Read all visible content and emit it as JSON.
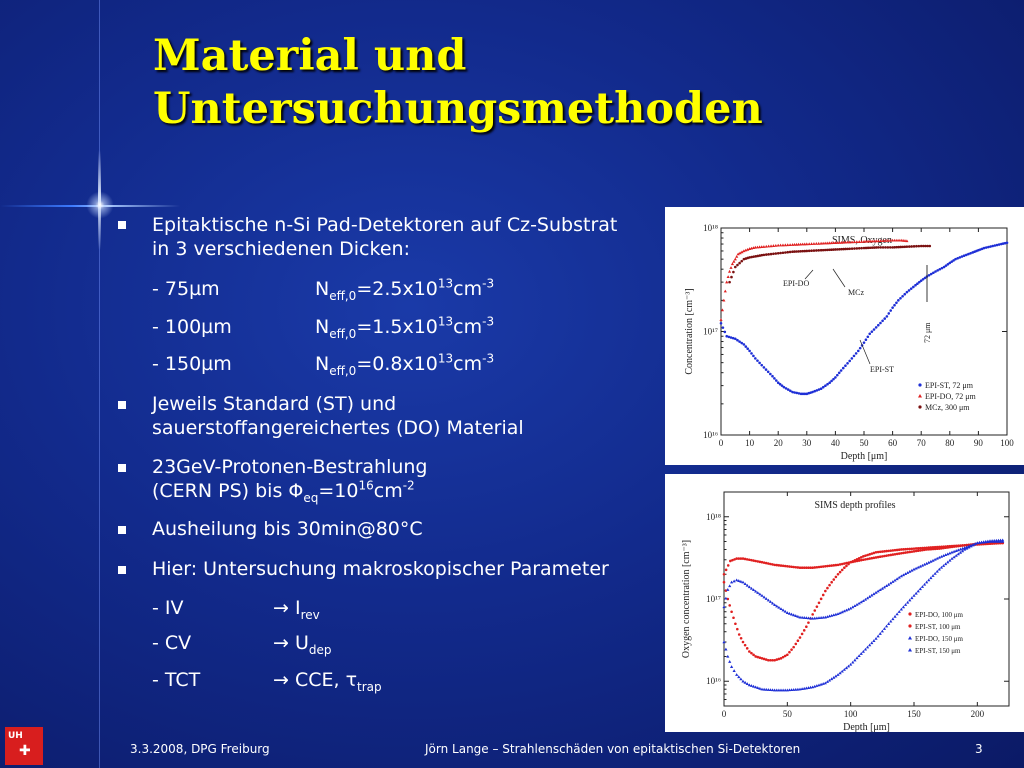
{
  "slide": {
    "title": "Material und Untersuchungsmethoden",
    "logo_text": "UH",
    "footer": {
      "date": "3.3.2008, DPG Freiburg",
      "center": "Jörn Lange – Strahlenschäden von epitaktischen Si-Detektoren",
      "page": "3"
    }
  },
  "content": {
    "b1_line1": "Epitaktische n-Si Pad-Detektoren auf Cz-Substrat",
    "b1_line2": "in 3 verschiedenen Dicken:",
    "thickness": [
      {
        "label": "- 75µm",
        "n": "N",
        "sub": "eff,0",
        "val": "=2.5x10",
        "exp": "13",
        "unit": "cm",
        "unit_exp": "-3"
      },
      {
        "label": "- 100µm",
        "n": "N",
        "sub": "eff,0",
        "val": "=1.5x10",
        "exp": "13",
        "unit": "cm",
        "unit_exp": "-3"
      },
      {
        "label": "- 150µm",
        "n": "N",
        "sub": "eff,0",
        "val": "=0.8x10",
        "exp": "13",
        "unit": "cm",
        "unit_exp": "-3"
      }
    ],
    "b2_line1": "Jeweils Standard (ST) und",
    "b2_line2": "sauerstoffangereichertes (DO) Material",
    "b3_line1": "23GeV-Protonen-Bestrahlung",
    "b3_line2_a": "(CERN PS) bis ",
    "b3_phi": "Φ",
    "b3_phi_sub": "eq",
    "b3_mid": "=10",
    "b3_exp": "16",
    "b3_unit": "cm",
    "b3_unit_exp": "-2",
    "b4": "Ausheilung bis 30min@80°C",
    "b5": "Hier: Untersuchung makroskopischer Parameter",
    "methods": [
      {
        "label": "- IV",
        "arrow": "→",
        "sym": "I",
        "sub": "rev"
      },
      {
        "label": "- CV",
        "arrow": "→",
        "sym": "U",
        "sub": "dep"
      },
      {
        "label": "- TCT",
        "arrow": "→",
        "sym": " CCE, τ",
        "sub": "trap"
      }
    ]
  },
  "icons": {
    "bullet": "square-bullet-icon",
    "logo": "university-logo-icon"
  },
  "chart_data": [
    {
      "type": "scatter",
      "title": "SIMS, Oxygen",
      "xlabel": "Depth [μm]",
      "ylabel": "Concentration [cm⁻³]",
      "xlim": [
        0,
        100
      ],
      "ylim": [
        1e+16,
        1e+18
      ],
      "yscale": "log",
      "xticks": [
        "0",
        "10",
        "20",
        "30",
        "40",
        "50",
        "60",
        "70",
        "80",
        "90",
        "100"
      ],
      "yticks": [
        "10¹⁶",
        "10¹⁷",
        "10¹⁸"
      ],
      "colors": {
        "EPI-ST": "#1e2fd6",
        "EPI-DO": "#e02020",
        "MCz": "#7a1010"
      },
      "annotations": [
        "EPI-DO",
        "MCz",
        "EPI-ST",
        "72 μm"
      ],
      "legend_position": "bottom-right",
      "series": [
        {
          "name": "EPI-ST, 72 μm",
          "marker": "dot",
          "color": "#1e2fd6",
          "x": [
            0,
            2,
            5,
            8,
            10,
            12,
            15,
            18,
            20,
            22,
            25,
            28,
            30,
            32,
            35,
            38,
            40,
            42,
            45,
            48,
            50,
            52,
            55,
            58,
            60,
            62,
            65,
            68,
            70,
            72,
            75,
            78,
            80,
            82,
            85,
            88,
            90,
            92,
            95,
            98,
            100
          ],
          "y": [
            1.2e+17,
            9e+16,
            8.5e+16,
            7.5e+16,
            6.5e+16,
            5.5e+16,
            4.5e+16,
            3.7e+16,
            3.2e+16,
            2.9e+16,
            2.6e+16,
            2.5e+16,
            2.5e+16,
            2.6e+16,
            2.8e+16,
            3.2e+16,
            3.6e+16,
            4.2e+16,
            5.2e+16,
            6.5e+16,
            7.8e+16,
            9.5e+16,
            1.15e+17,
            1.4e+17,
            1.7e+17,
            2e+17,
            2.4e+17,
            2.8e+17,
            3.1e+17,
            3.4e+17,
            3.8e+17,
            4.2e+17,
            4.6e+17,
            5e+17,
            5.4e+17,
            5.8e+17,
            6.1e+17,
            6.4e+17,
            6.7e+17,
            7e+17,
            7.2e+17
          ]
        },
        {
          "name": "EPI-DO, 72 μm",
          "marker": "triangle",
          "color": "#e02020",
          "x": [
            0,
            1,
            2,
            3,
            4,
            5,
            6,
            8,
            10,
            12,
            15,
            20,
            25,
            30,
            35,
            40,
            45,
            50,
            55,
            60,
            63,
            65
          ],
          "y": [
            1.3e+17,
            2e+17,
            3e+17,
            3.8e+17,
            4.5e+17,
            5e+17,
            5.6e+17,
            6e+17,
            6.3e+17,
            6.5e+17,
            6.6e+17,
            6.8e+17,
            6.9e+17,
            7e+17,
            7.1e+17,
            7.2e+17,
            7.3e+17,
            7.4e+17,
            7.5e+17,
            7.6e+17,
            7.6e+17,
            7.5e+17
          ]
        },
        {
          "name": "MCz, 300 μm",
          "marker": "dot",
          "color": "#7a1010",
          "x": [
            3,
            5,
            8,
            10,
            15,
            20,
            25,
            30,
            35,
            40,
            45,
            50,
            55,
            60,
            65,
            70,
            73
          ],
          "y": [
            3e+17,
            4.2e+17,
            5e+17,
            5.2e+17,
            5.5e+17,
            5.7e+17,
            5.9e+17,
            6e+17,
            6.1e+17,
            6.2e+17,
            6.3e+17,
            6.4e+17,
            6.5e+17,
            6.5e+17,
            6.6e+17,
            6.7e+17,
            6.7e+17
          ]
        }
      ]
    },
    {
      "type": "scatter",
      "title": "SIMS depth profiles",
      "xlabel": "Depth [μm]",
      "ylabel": "Oxygen concentration [cm⁻³]",
      "xlim": [
        0,
        225
      ],
      "ylim": [
        5000000000000000.0,
        2e+18
      ],
      "yscale": "log",
      "xticks": [
        "0",
        "50",
        "100",
        "150",
        "200"
      ],
      "yticks": [
        "10¹⁶",
        "10¹⁷",
        "10¹⁸"
      ],
      "legend_position": "bottom-right",
      "series": [
        {
          "name": "EPI-DO, 100 μm",
          "marker": "dot",
          "color": "#e02020",
          "x": [
            0,
            5,
            10,
            15,
            20,
            30,
            40,
            50,
            60,
            70,
            80,
            90,
            100,
            110,
            120,
            130,
            140,
            150,
            160,
            170,
            180,
            190,
            200,
            210,
            220
          ],
          "y": [
            2e+17,
            2.9e+17,
            3.1e+17,
            3.1e+17,
            3e+17,
            2.8e+17,
            2.6e+17,
            2.5e+17,
            2.4e+17,
            2.4e+17,
            2.5e+17,
            2.6e+17,
            2.8e+17,
            3e+17,
            3.2e+17,
            3.4e+17,
            3.6e+17,
            3.8e+17,
            4e+17,
            4.1e+17,
            4.3e+17,
            4.5e+17,
            4.7e+17,
            4.8e+17,
            4.8e+17
          ]
        },
        {
          "name": "EPI-ST, 100 μm",
          "marker": "dot",
          "color": "#e02020",
          "x": [
            0,
            3,
            6,
            9,
            12,
            15,
            20,
            25,
            30,
            35,
            40,
            45,
            50,
            55,
            60,
            65,
            70,
            75,
            80,
            85,
            90,
            95,
            100,
            110,
            120,
            140,
            160,
            180,
            200,
            220
          ],
          "y": [
            1.6e+17,
            1e+17,
            7e+16,
            5e+16,
            3.7e+16,
            3e+16,
            2.3e+16,
            2e+16,
            1.9e+16,
            1.8e+16,
            1.8e+16,
            1.9e+16,
            2.1e+16,
            2.6e+16,
            3.4e+16,
            4.6e+16,
            6.5e+16,
            9e+16,
            1.25e+17,
            1.6e+17,
            2e+17,
            2.4e+17,
            2.8e+17,
            3.3e+17,
            3.7e+17,
            4e+17,
            4.2e+17,
            4.4e+17,
            4.6e+17,
            4.8e+17
          ]
        },
        {
          "name": "EPI-DO, 150 μm",
          "marker": "triangle",
          "color": "#1e2fd6",
          "x": [
            0,
            3,
            6,
            10,
            15,
            20,
            30,
            40,
            50,
            60,
            70,
            80,
            90,
            100,
            110,
            120,
            130,
            140,
            150,
            160,
            170,
            180,
            190,
            200,
            210,
            220
          ],
          "y": [
            8e+16,
            1.3e+17,
            1.6e+17,
            1.7e+17,
            1.6e+17,
            1.4e+17,
            1.1e+17,
            8.5e+16,
            6.8e+16,
            6e+16,
            5.8e+16,
            6e+16,
            6.6e+16,
            7.7e+16,
            9.5e+16,
            1.2e+17,
            1.5e+17,
            1.9e+17,
            2.3e+17,
            2.7e+17,
            3.2e+17,
            3.7e+17,
            4.2e+17,
            4.8e+17,
            5e+17,
            5e+17
          ]
        },
        {
          "name": "EPI-ST, 150 μm",
          "marker": "triangle",
          "color": "#1e2fd6",
          "x": [
            0,
            3,
            6,
            10,
            15,
            20,
            25,
            30,
            40,
            50,
            60,
            70,
            80,
            90,
            100,
            110,
            120,
            130,
            140,
            150,
            160,
            170,
            180,
            190,
            200,
            210,
            220
          ],
          "y": [
            3e+16,
            2e+16,
            1.5e+16,
            1.2e+16,
            1e+16,
            9000000000000000.0,
            8500000000000000.0,
            8000000000000000.0,
            7800000000000000.0,
            7800000000000000.0,
            8000000000000000.0,
            8500000000000000.0,
            9500000000000000.0,
            1.2e+16,
            1.6e+16,
            2.3e+16,
            3.3e+16,
            5e+16,
            7.5e+16,
            1.1e+17,
            1.6e+17,
            2.3e+17,
            3.1e+17,
            4e+17,
            4.8e+17,
            5.1e+17,
            5.2e+17
          ]
        }
      ]
    }
  ]
}
